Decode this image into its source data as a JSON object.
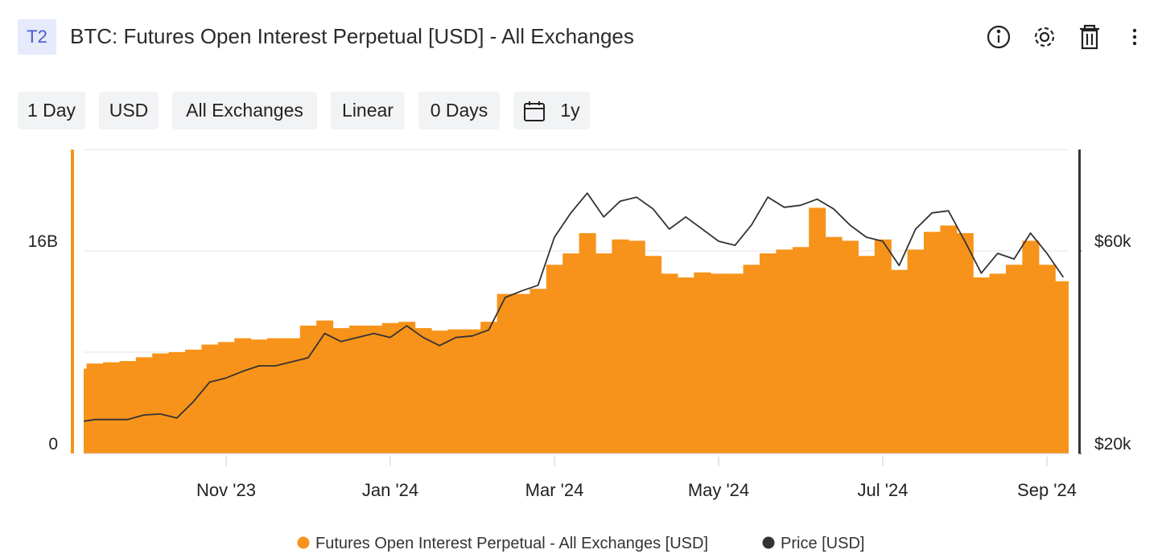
{
  "header": {
    "badge": "T2",
    "title": "BTC: Futures Open Interest Perpetual [USD] - All Exchanges"
  },
  "controls": [
    "1 Day",
    "USD",
    "All Exchanges",
    "Linear",
    "0 Days",
    "1y"
  ],
  "chart_data": {
    "type": "bar",
    "categories": [
      null,
      null,
      null,
      null,
      null,
      null,
      null,
      null,
      null,
      "Nov '23",
      null,
      null,
      null,
      null,
      null,
      null,
      null,
      null,
      null,
      "Jan '24",
      null,
      null,
      null,
      null,
      null,
      null,
      null,
      null,
      null,
      "Mar '24",
      null,
      null,
      null,
      null,
      null,
      null,
      null,
      null,
      null,
      "May '24",
      null,
      null,
      null,
      null,
      null,
      null,
      null,
      null,
      null,
      "Jul '24",
      null,
      null,
      null,
      null,
      null,
      null,
      null,
      null,
      null,
      "Sep '24",
      null
    ],
    "series": [
      {
        "name": "Futures Open Interest Perpetual - All Exchanges [USD]",
        "color": "#f7931a",
        "values": [
          6700000000,
          7100000000,
          7200000000,
          7300000000,
          7600000000,
          7900000000,
          8000000000,
          8200000000,
          8600000000,
          8800000000,
          9100000000,
          9000000000,
          9100000000,
          9100000000,
          10100000000,
          10500000000,
          9900000000,
          10100000000,
          10100000000,
          10300000000,
          10400000000,
          9900000000,
          9700000000,
          9800000000,
          9800000000,
          10400000000,
          12600000000,
          12600000000,
          13000000000,
          14900000000,
          15800000000,
          17400000000,
          15800000000,
          16900000000,
          16800000000,
          15600000000,
          14200000000,
          13900000000,
          14300000000,
          14200000000,
          14200000000,
          14900000000,
          15800000000,
          16100000000,
          16300000000,
          19400000000,
          17100000000,
          16800000000,
          15600000000,
          16900000000,
          14500000000,
          16100000000,
          17500000000,
          18000000000,
          17400000000,
          13900000000,
          14200000000,
          14900000000,
          16800000000,
          14900000000,
          13600000000
        ]
      },
      {
        "name": "Price [USD]",
        "type": "line",
        "axis": "y2",
        "color": "#333333",
        "values": [
          26200,
          26700,
          26700,
          26700,
          27600,
          27800,
          27000,
          30200,
          34100,
          34900,
          36200,
          37300,
          37300,
          38100,
          38900,
          43700,
          42100,
          42900,
          43700,
          42900,
          45200,
          42900,
          41300,
          42900,
          43200,
          44400,
          50800,
          52100,
          53200,
          62700,
          67500,
          71400,
          66700,
          69800,
          70600,
          68300,
          64300,
          66700,
          64300,
          61900,
          61100,
          65100,
          70600,
          68600,
          69000,
          70200,
          68300,
          65100,
          62700,
          61900,
          57100,
          64300,
          67500,
          67900,
          61900,
          55600,
          59500,
          58400,
          63500,
          59500,
          54800
        ]
      }
    ],
    "ylim": [
      0,
      24000000000
    ],
    "yticks": [
      0,
      {
        "value": 16000000000,
        "label": "16B"
      }
    ],
    "y_minor_grid": [
      8000000000,
      24000000000
    ],
    "y2lim": [
      20000,
      80000
    ],
    "y2ticks": [
      {
        "value": 20000,
        "label": "$20k"
      },
      {
        "value": 60000,
        "label": "$60k"
      }
    ],
    "grid": true,
    "legend": "bottom"
  }
}
